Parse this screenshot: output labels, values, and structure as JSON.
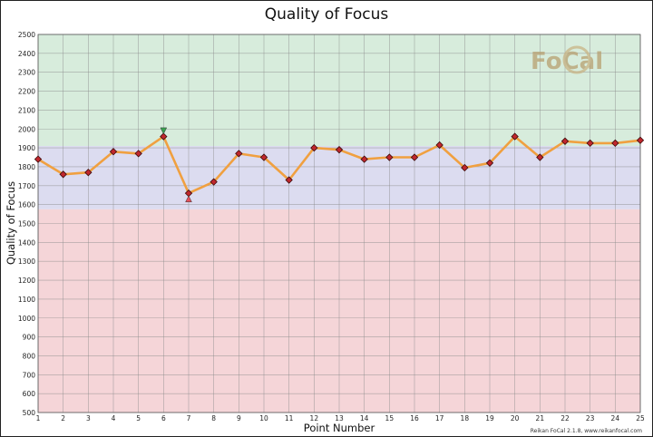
{
  "chart_data": {
    "type": "line",
    "title": "Quality of Focus",
    "xlabel": "Point Number",
    "ylabel": "Quality of Focus",
    "xlim": [
      1,
      25
    ],
    "ylim": [
      500,
      2500
    ],
    "y_tick_step": 100,
    "grid": true,
    "x": [
      1,
      2,
      3,
      4,
      5,
      6,
      7,
      8,
      9,
      10,
      11,
      12,
      13,
      14,
      15,
      16,
      17,
      18,
      19,
      20,
      21,
      22,
      23,
      24,
      25
    ],
    "series": [
      {
        "values": [
          1840,
          1760,
          1770,
          1880,
          1870,
          1960,
          1660,
          1720,
          1870,
          1850,
          1730,
          1900,
          1890,
          1840,
          1850,
          1850,
          1915,
          1795,
          1820,
          1960,
          1850,
          1935,
          1925,
          1925,
          1940
        ],
        "color": "#f0a040",
        "marker": "diamond",
        "marker_color": "#c0272d"
      }
    ],
    "bands": [
      {
        "from": 1910,
        "to": 2500,
        "color": "#d7ecdc"
      },
      {
        "from": 1575,
        "to": 1910,
        "color": "#dcdcf0"
      },
      {
        "from": 500,
        "to": 1575,
        "color": "#f5d5d8"
      }
    ],
    "markers": [
      {
        "x": 6,
        "y": 1990,
        "shape": "triangle-down",
        "color": "#3aa050"
      },
      {
        "x": 7,
        "y": 1630,
        "shape": "triangle-up",
        "color": "#e8505a"
      }
    ]
  },
  "logo": {
    "text": "FoCal",
    "color": "#b8a070"
  },
  "footer": "Reikan FoCal 2.1.8, www.reikanfocal.com"
}
